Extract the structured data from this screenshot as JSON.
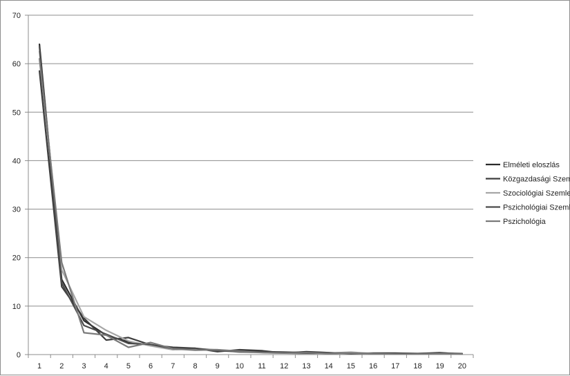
{
  "chart_data": {
    "type": "line",
    "title": "",
    "xlabel": "",
    "ylabel": "",
    "x": [
      1,
      2,
      3,
      4,
      5,
      6,
      7,
      8,
      9,
      10,
      11,
      12,
      13,
      14,
      15,
      16,
      17,
      18,
      19,
      20
    ],
    "ylim": [
      0,
      70
    ],
    "yticks": [
      0,
      10,
      20,
      30,
      40,
      50,
      60,
      70
    ],
    "grid": true,
    "legend_position": "right",
    "series": [
      {
        "name": "Elméleti eloszlás",
        "color": "#2b2b2b",
        "values": [
          64.0,
          15.5,
          7.0,
          4.0,
          2.6,
          1.9,
          1.4,
          1.1,
          0.9,
          0.7,
          0.6,
          0.5,
          0.4,
          0.35,
          0.3,
          0.27,
          0.24,
          0.22,
          0.2,
          0.18
        ]
      },
      {
        "name": "Közgazdasági Szemle",
        "color": "#3d3d3d",
        "values": [
          58.5,
          14.0,
          7.5,
          3.0,
          3.5,
          2.0,
          1.5,
          1.3,
          0.6,
          1.0,
          0.8,
          0.3,
          0.6,
          0.4,
          0.2,
          0.3,
          0.3,
          0.2,
          0.4,
          0.1
        ]
      },
      {
        "name": "Szociológiai Szemle",
        "color": "#a6a6a6",
        "values": [
          62.5,
          17.5,
          7.8,
          5.0,
          2.8,
          1.8,
          1.0,
          1.2,
          1.0,
          0.5,
          0.4,
          0.3,
          0.2,
          0.3,
          0.5,
          0.2,
          0.2,
          0.1,
          0.2,
          0.1
        ]
      },
      {
        "name": "Pszichológiai Szemle",
        "color": "#4a4a4a",
        "values": [
          63.5,
          14.8,
          6.0,
          4.2,
          2.3,
          2.1,
          1.2,
          1.3,
          0.8,
          0.6,
          0.5,
          0.4,
          0.3,
          0.3,
          0.3,
          0.2,
          0.2,
          0.2,
          0.3,
          0.2
        ]
      },
      {
        "name": "Pszichológia",
        "color": "#7a7a7a",
        "values": [
          61.0,
          19.0,
          4.5,
          4.0,
          1.5,
          2.5,
          1.2,
          0.9,
          1.0,
          0.7,
          0.4,
          0.3,
          0.4,
          0.2,
          0.3,
          0.2,
          0.1,
          0.1,
          0.2,
          0.1
        ]
      }
    ]
  }
}
